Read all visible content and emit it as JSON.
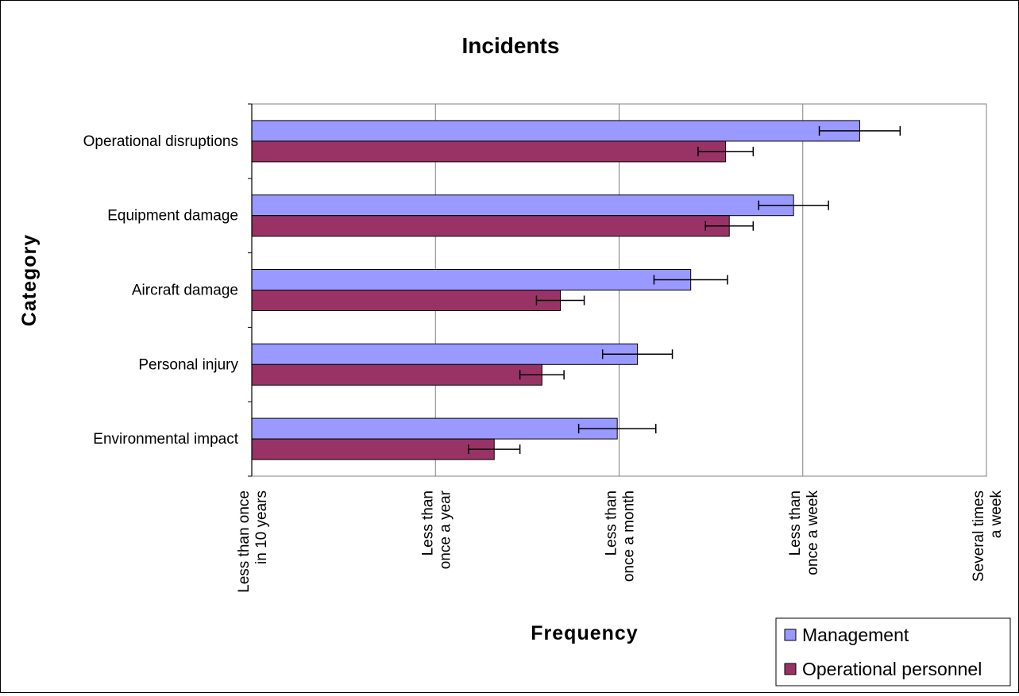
{
  "chart_data": {
    "type": "bar",
    "orientation": "horizontal",
    "title": "Incidents",
    "xlabel": "Frequency",
    "ylabel": "Category",
    "categories": [
      "Operational disruptions",
      "Equipment damage",
      "Aircraft damage",
      "Personal injury",
      "Environmental impact"
    ],
    "x_ticks": [
      {
        "value": 0,
        "lines": [
          "Less than once",
          "in 10 years"
        ]
      },
      {
        "value": 1,
        "lines": [
          "Less than",
          "once a year"
        ]
      },
      {
        "value": 2,
        "lines": [
          "Less than",
          "once a month"
        ]
      },
      {
        "value": 3,
        "lines": [
          "Less than",
          "once a week"
        ]
      },
      {
        "value": 4,
        "lines": [
          "Several times",
          "a week"
        ]
      }
    ],
    "xlim": [
      0,
      4
    ],
    "grid": "vertical",
    "legend_position": "bottom-right",
    "series": [
      {
        "name": "Management",
        "color": "#9999ff",
        "values": [
          3.31,
          2.95,
          2.39,
          2.1,
          1.99
        ],
        "error": [
          0.22,
          0.19,
          0.2,
          0.19,
          0.21
        ]
      },
      {
        "name": "Operational personnel",
        "color": "#993366",
        "values": [
          2.58,
          2.6,
          1.68,
          1.58,
          1.32
        ],
        "error": [
          0.15,
          0.13,
          0.13,
          0.12,
          0.14
        ]
      }
    ]
  }
}
